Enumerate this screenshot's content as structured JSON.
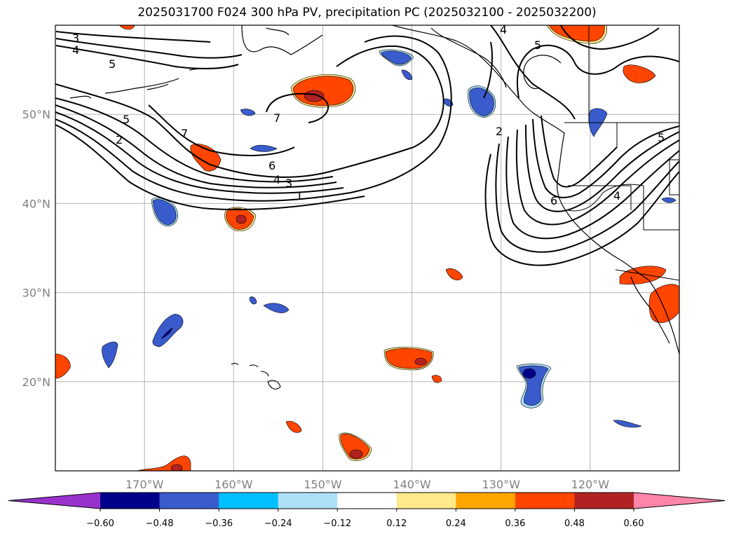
{
  "title": "2025031700 F024 300 hPa PV, precipitation PC (2025032100 - 2025032200)",
  "chart_data": {
    "type": "contour map",
    "title": "2025031700 F024 300 hPa PV, precipitation PC (2025032100 - 2025032200)",
    "lon_range": [
      -180,
      -110
    ],
    "lat_range": [
      10,
      60
    ],
    "lon_ticks": [
      -170,
      -160,
      -150,
      -140,
      -130,
      -120
    ],
    "lon_tick_labels": [
      "170°W",
      "160°W",
      "150°W",
      "140°W",
      "130°W",
      "120°W"
    ],
    "lat_ticks": [
      20,
      30,
      40,
      50
    ],
    "lat_tick_labels": [
      "20°N",
      "30°N",
      "40°N",
      "50°N"
    ],
    "grid": true,
    "colorbar": {
      "bounds": [
        -0.6,
        -0.48,
        -0.36,
        -0.24,
        -0.12,
        0.12,
        0.24,
        0.36,
        0.48,
        0.6
      ],
      "tick_labels": [
        "−0.60",
        "−0.48",
        "−0.36",
        "−0.24",
        "−0.12",
        "0.12",
        "0.24",
        "0.36",
        "0.48",
        "0.60"
      ],
      "colors": [
        "#9932CC",
        "#00008B",
        "#3A5BCC",
        "#00BFFF",
        "#ADE0F7",
        "#FFFFFF",
        "#FFE98A",
        "#FFA500",
        "#FF4500",
        "#B22222",
        "#FF85A8"
      ],
      "extend": "both"
    },
    "pv_contour_labels": [
      "1",
      "2",
      "3",
      "4",
      "5",
      "6",
      "7"
    ],
    "pv_contour_label_instances": [
      "3",
      "4",
      "5",
      "5",
      "2",
      "7",
      "7",
      "6",
      "4",
      "3",
      "1",
      "4",
      "5",
      "2",
      "6",
      "4",
      "5"
    ]
  }
}
